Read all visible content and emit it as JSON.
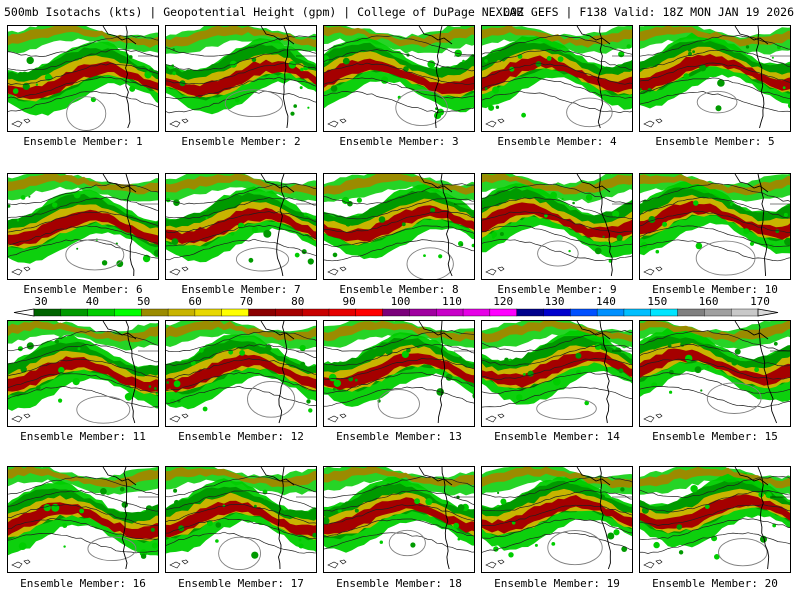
{
  "header": {
    "left": "500mb Isotachs (kts) | Geopotential Height (gpm) | College of DuPage NEXLAB",
    "right": "00Z GEFS | F138 Valid: 18Z MON JAN 19 2026"
  },
  "legend": {
    "labels": [
      "30",
      "40",
      "50",
      "60",
      "70",
      "80",
      "90",
      "100",
      "110",
      "120",
      "130",
      "140",
      "150",
      "160",
      "170"
    ],
    "colors": [
      "#006400",
      "#009a00",
      "#00cd00",
      "#00ff00",
      "#9b8b00",
      "#c8b400",
      "#e8d800",
      "#ffff00",
      "#8b0000",
      "#a50000",
      "#c80000",
      "#e60000",
      "#ff0000",
      "#7a007a",
      "#a000a0",
      "#c800c8",
      "#e600e6",
      "#ff00ff",
      "#00008b",
      "#0000cd",
      "#0050ff",
      "#0090ff",
      "#00bfff",
      "#00e5ff",
      "#808080",
      "#a0a0a0",
      "#c8c8c8"
    ]
  },
  "panels": [
    {
      "caption": "Ensemble Member: 1"
    },
    {
      "caption": "Ensemble Member: 2"
    },
    {
      "caption": "Ensemble Member: 3"
    },
    {
      "caption": "Ensemble Member: 4"
    },
    {
      "caption": "Ensemble Member: 5"
    },
    {
      "caption": "Ensemble Member: 6"
    },
    {
      "caption": "Ensemble Member: 7"
    },
    {
      "caption": "Ensemble Member: 8"
    },
    {
      "caption": "Ensemble Member: 9"
    },
    {
      "caption": "Ensemble Member: 10"
    },
    {
      "caption": "Ensemble Member: 11"
    },
    {
      "caption": "Ensemble Member: 12"
    },
    {
      "caption": "Ensemble Member: 13"
    },
    {
      "caption": "Ensemble Member: 14"
    },
    {
      "caption": "Ensemble Member: 15"
    },
    {
      "caption": "Ensemble Member: 16"
    },
    {
      "caption": "Ensemble Member: 17"
    },
    {
      "caption": "Ensemble Member: 18"
    },
    {
      "caption": "Ensemble Member: 19"
    },
    {
      "caption": "Ensemble Member: 20"
    }
  ]
}
